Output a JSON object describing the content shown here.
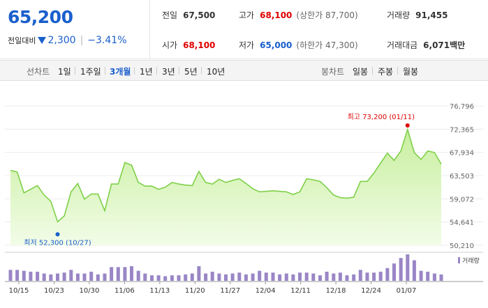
{
  "quote": {
    "price": "65,200",
    "change_label": "전일대비",
    "change": "2,300",
    "change_pct": "−3.41%",
    "prev_close_label": "전일",
    "prev_close": "67,500",
    "open_label": "시가",
    "open": "68,100",
    "high_label": "고가",
    "high": "68,100",
    "upper_limit": "(상한가 87,700)",
    "low_label": "저가",
    "low": "65,000",
    "lower_limit": "(하한가 47,300)",
    "volume_label": "거래량",
    "volume": "91,455",
    "amount_label": "거래대금",
    "amount": "6,071",
    "amount_unit": "백만"
  },
  "toolbar": {
    "line_chart_label": "선차트",
    "periods": [
      "1일",
      "1주일",
      "3개월",
      "1년",
      "3년",
      "5년",
      "10년"
    ],
    "active_period": "3개월",
    "candle_chart_label": "봉차트",
    "candles": [
      "일봉",
      "주봉",
      "월봉"
    ]
  },
  "colors": {
    "price_down": "#1a5fcc",
    "price_up": "#e00000",
    "line": "#7ed048",
    "volume": "#9a86c6"
  },
  "chart_data": {
    "type": "area",
    "y_ticks": [
      "76,796",
      "72,365",
      "67,934",
      "63,503",
      "59,072",
      "54,641",
      "50,210"
    ],
    "ylim": [
      50210,
      76796
    ],
    "x_ticks": [
      "10/15",
      "10/23",
      "10/30",
      "11/06",
      "11/13",
      "11/20",
      "11/27",
      "12/04",
      "12/11",
      "12/18",
      "12/24",
      "01/07"
    ],
    "high_annotation": "최고 73,200 (01/11)",
    "low_annotation": "최저 52,300 (10/27)",
    "volume_legend": "거래량",
    "values": [
      64500,
      64200,
      60200,
      60900,
      61600,
      59800,
      58600,
      54700,
      55800,
      60400,
      62000,
      59000,
      60000,
      60000,
      56800,
      61900,
      61900,
      66000,
      65500,
      62200,
      61500,
      61500,
      60900,
      61300,
      62200,
      61900,
      61700,
      61600,
      64300,
      62200,
      61900,
      62800,
      62200,
      62600,
      62900,
      62000,
      61000,
      60400,
      60500,
      60600,
      60500,
      60400,
      59900,
      60400,
      62900,
      62700,
      62400,
      61200,
      59800,
      59300,
      59200,
      59400,
      62400,
      62400,
      64000,
      65900,
      67800,
      66400,
      68200,
      72300,
      67900,
      66600,
      68200,
      67900,
      65700
    ],
    "volume": [
      24,
      24,
      22,
      20,
      20,
      16,
      14,
      16,
      18,
      24,
      16,
      16,
      20,
      14,
      16,
      30,
      30,
      30,
      32,
      22,
      16,
      12,
      12,
      10,
      12,
      12,
      14,
      16,
      32,
      16,
      20,
      16,
      14,
      16,
      18,
      14,
      16,
      22,
      18,
      18,
      14,
      16,
      14,
      18,
      18,
      16,
      12,
      20,
      16,
      18,
      12,
      14,
      24,
      18,
      18,
      20,
      28,
      38,
      50,
      58,
      45,
      22,
      20,
      16,
      14
    ]
  }
}
